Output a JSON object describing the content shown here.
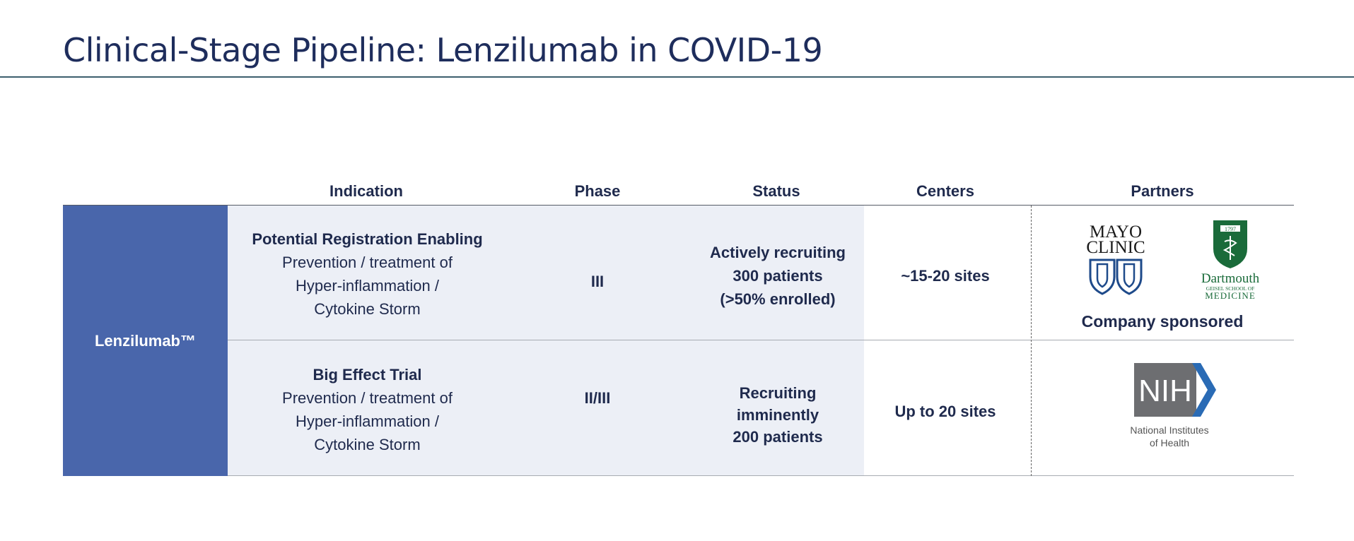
{
  "page": {
    "title": "Clinical-Stage Pipeline: Lenzilumab in COVID-19"
  },
  "table": {
    "headers": {
      "indication": "Indication",
      "phase": "Phase",
      "status": "Status",
      "centers": "Centers",
      "partners": "Partners"
    },
    "drug": "Lenzilumab™",
    "rows": [
      {
        "indication_title": "Potential Registration Enabling",
        "indication_lines": [
          "Prevention / treatment of",
          "Hyper-inflammation /",
          "Cytokine Storm"
        ],
        "phase": "III",
        "status_lines": [
          "Actively recruiting",
          "300 patients",
          "(>50% enrolled)"
        ],
        "centers": "~15-20 sites",
        "partners_caption": "Company sponsored"
      },
      {
        "indication_title": "Big Effect Trial",
        "indication_lines": [
          "Prevention / treatment of",
          "Hyper-inflammation /",
          "Cytokine Storm"
        ],
        "phase": "II/III",
        "status_lines": [
          "Recruiting",
          "imminently",
          "200 patients"
        ],
        "centers": "Up to 20 sites"
      }
    ]
  },
  "logos": {
    "mayo": {
      "line1": "MAYO",
      "line2": "CLINIC"
    },
    "dartmouth": {
      "name": "Dartmouth",
      "school": "GEISEL SCHOOL OF",
      "dept": "MEDICINE",
      "year": "1797"
    },
    "nih": {
      "mark": "NIH",
      "line1": "National Institutes",
      "line2": "of Health"
    }
  },
  "colors": {
    "title": "#1e2d5c",
    "drug_cell": "#4966ab",
    "shaded_cells": "#eceff6",
    "text": "#1f2a4d",
    "dartmouth_green": "#1a6b3a",
    "mayo_blue": "#1e4a8a",
    "nih_gray": "#6d6e71",
    "nih_blue": "#2a6bb5"
  },
  "icons": [
    "mayo-clinic-logo",
    "dartmouth-shield-logo",
    "nih-logo"
  ]
}
